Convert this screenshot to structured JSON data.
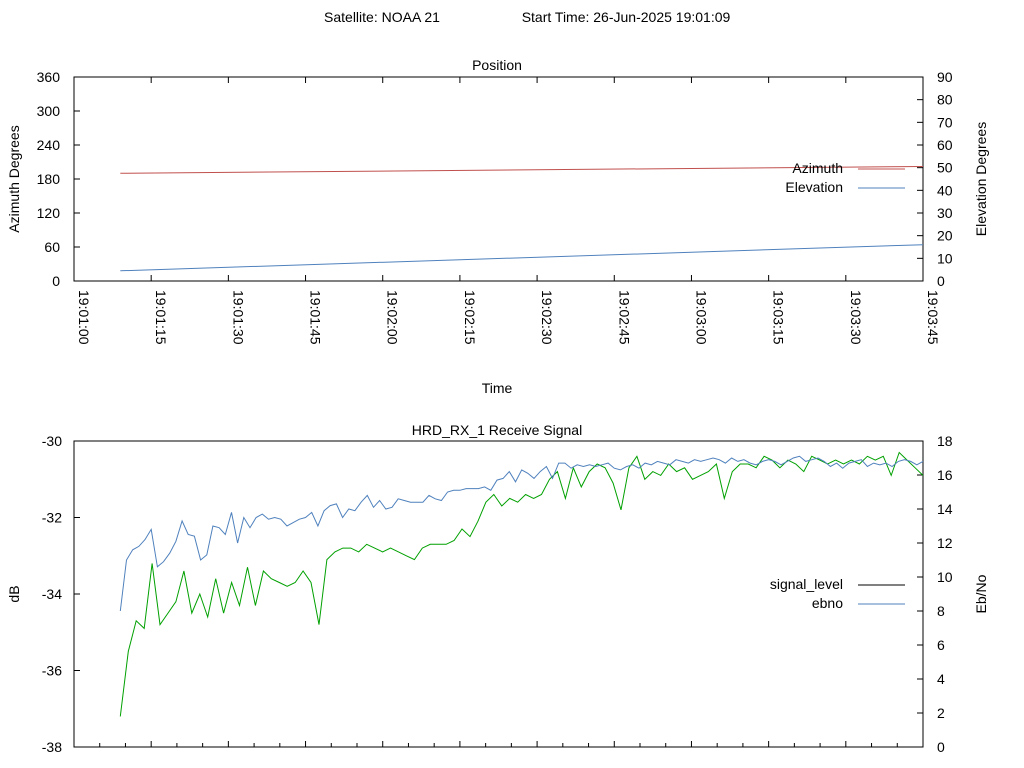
{
  "header": {
    "satellite": "Satellite: NOAA 21",
    "start_time": "Start Time: 26-Jun-2025 19:01:09"
  },
  "chart_data": [
    {
      "type": "line",
      "title": "Position",
      "xlabel": "Time",
      "ylabel": "Azimuth Degrees",
      "y2label": "Elevation Degrees",
      "xlim": [
        "19:01:00",
        "19:03:45"
      ],
      "ylim": [
        0,
        360
      ],
      "y2lim": [
        0,
        90
      ],
      "x_ticks": [
        "19:01:00",
        "19:01:15",
        "19:01:30",
        "19:01:45",
        "19:02:00",
        "19:02:15",
        "19:02:30",
        "19:02:45",
        "19:03:00",
        "19:03:15",
        "19:03:30",
        "19:03:45"
      ],
      "y_ticks": [
        "0",
        "60",
        "120",
        "180",
        "240",
        "300",
        "360"
      ],
      "y2_ticks": [
        "0",
        "10",
        "20",
        "30",
        "40",
        "50",
        "60",
        "70",
        "80",
        "90"
      ],
      "grid": false,
      "legend": "right",
      "series": [
        {
          "name": "Azimuth",
          "axis": "y",
          "color": "#c0504d",
          "x": [
            "19:01:09",
            "19:03:45"
          ],
          "values": [
            190,
            202
          ]
        },
        {
          "name": "Elevation",
          "axis": "y2",
          "color": "#4f81bd",
          "x": [
            "19:01:09",
            "19:03:45"
          ],
          "values": [
            4.5,
            16
          ]
        }
      ]
    },
    {
      "type": "line",
      "title": "HRD_RX_1 Receive Signal",
      "xlabel": "",
      "ylabel": "dB",
      "y2label": "Eb/No",
      "ylim": [
        -38,
        -30
      ],
      "y2lim": [
        0,
        18
      ],
      "y_ticks": [
        "-30",
        "-32",
        "-34",
        "-36",
        "-38"
      ],
      "y2_ticks": [
        "0",
        "2",
        "4",
        "6",
        "8",
        "10",
        "12",
        "14",
        "16",
        "18"
      ],
      "grid": false,
      "legend": "right",
      "series": [
        {
          "name": "signal_level",
          "axis": "y",
          "color": "#00a000",
          "legend_color": "#000000",
          "values": [
            -37.2,
            -35.5,
            -34.7,
            -34.9,
            -33.2,
            -34.8,
            -34.5,
            -34.2,
            -33.4,
            -34.5,
            -34.0,
            -34.6,
            -33.6,
            -34.5,
            -33.7,
            -34.3,
            -33.3,
            -34.3,
            -33.4,
            -33.6,
            -33.7,
            -33.8,
            -33.7,
            -33.4,
            -33.7,
            -34.8,
            -33.1,
            -32.9,
            -32.8,
            -32.8,
            -32.9,
            -32.7,
            -32.8,
            -32.9,
            -32.8,
            -32.9,
            -33.0,
            -33.1,
            -32.8,
            -32.7,
            -32.7,
            -32.7,
            -32.6,
            -32.3,
            -32.5,
            -32.1,
            -31.6,
            -31.4,
            -31.7,
            -31.5,
            -31.6,
            -31.4,
            -31.5,
            -31.4,
            -31.0,
            -30.8,
            -31.5,
            -30.7,
            -31.2,
            -30.8,
            -30.6,
            -30.7,
            -31.1,
            -31.8,
            -30.7,
            -30.4,
            -31.0,
            -30.8,
            -30.9,
            -30.6,
            -30.8,
            -30.7,
            -31.0,
            -30.9,
            -30.8,
            -30.6,
            -31.5,
            -30.8,
            -30.6,
            -30.6,
            -30.7,
            -30.4,
            -30.5,
            -30.7,
            -30.5,
            -30.6,
            -30.8,
            -30.4,
            -30.5,
            -30.6,
            -30.5,
            -30.6,
            -30.5,
            -30.6,
            -30.4,
            -30.5,
            -30.4,
            -30.9,
            -30.3,
            -30.5,
            -30.7,
            -30.9
          ]
        },
        {
          "name": "ebno",
          "axis": "y2",
          "color": "#4f81bd",
          "values": [
            8.0,
            11.0,
            11.6,
            11.8,
            12.2,
            12.8,
            10.6,
            10.9,
            11.4,
            12.1,
            13.3,
            12.5,
            12.4,
            11.0,
            11.3,
            13.0,
            12.9,
            12.5,
            13.8,
            12.0,
            13.5,
            12.9,
            13.5,
            13.7,
            13.4,
            13.5,
            13.4,
            13.0,
            13.2,
            13.4,
            13.5,
            13.8,
            13.0,
            13.9,
            14.2,
            14.3,
            13.5,
            14.0,
            13.9,
            14.4,
            14.8,
            14.1,
            14.5,
            14.0,
            14.1,
            14.6,
            14.5,
            14.4,
            14.4,
            14.4,
            14.8,
            14.6,
            14.5,
            15.0,
            15.1,
            15.1,
            15.2,
            15.2,
            15.2,
            15.3,
            15.1,
            15.7,
            15.8,
            16.2,
            15.6,
            16.3,
            16.1,
            15.8,
            16.2,
            16.5,
            15.8,
            16.7,
            16.7,
            16.4,
            16.6,
            16.5,
            16.6,
            16.5,
            16.6,
            16.7,
            16.4,
            16.3,
            16.5,
            16.6,
            16.4,
            16.7,
            16.6,
            16.8,
            16.7,
            16.6,
            16.9,
            16.8,
            16.7,
            16.9,
            16.8,
            16.9,
            17.0,
            16.9,
            16.7,
            17.0,
            16.8,
            16.9,
            16.7,
            16.6,
            16.8,
            16.9,
            16.8,
            16.6,
            16.8,
            17.0,
            17.1,
            16.8,
            16.9,
            17.0,
            16.8,
            16.5,
            16.7,
            16.4,
            16.7,
            16.8,
            16.9,
            16.5,
            16.7,
            16.6,
            16.7,
            16.5,
            16.8,
            16.9,
            16.8,
            16.6,
            16.8
          ]
        }
      ]
    }
  ]
}
